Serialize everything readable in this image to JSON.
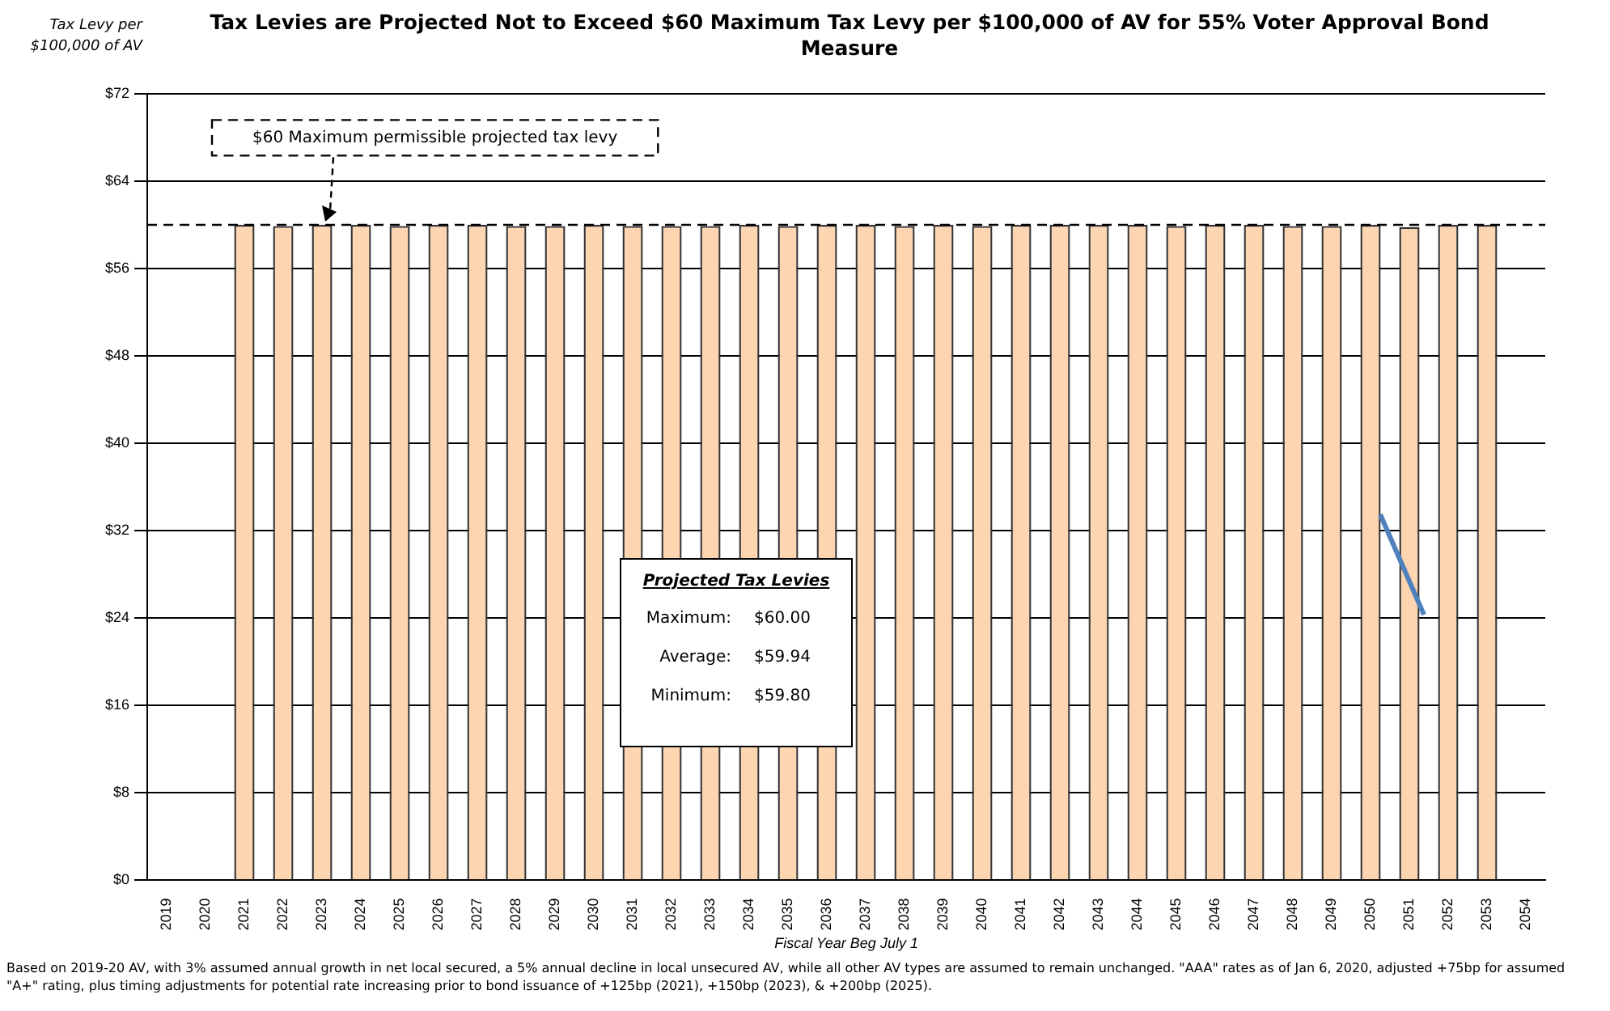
{
  "chart_data": {
    "type": "bar",
    "title": "Tax Levies are Projected Not to Exceed $60 Maximum Tax Levy per $100,000 of AV for 55% Voter Approval Bond Measure",
    "ylabel": "Tax Levy per $100,000 of AV",
    "xlabel": "Fiscal Year Beg July 1",
    "categories": [
      "2019",
      "2020",
      "2021",
      "2022",
      "2023",
      "2024",
      "2025",
      "2026",
      "2027",
      "2028",
      "2029",
      "2030",
      "2031",
      "2032",
      "2033",
      "2034",
      "2035",
      "2036",
      "2037",
      "2038",
      "2039",
      "2040",
      "2041",
      "2042",
      "2043",
      "2044",
      "2045",
      "2046",
      "2047",
      "2048",
      "2049",
      "2050",
      "2051",
      "2052",
      "2053",
      "2054"
    ],
    "values": [
      null,
      null,
      60,
      59.9,
      60,
      60,
      59.9,
      60,
      60,
      59.9,
      59.9,
      60,
      59.9,
      59.9,
      59.9,
      60,
      59.9,
      60,
      60,
      59.9,
      60,
      59.9,
      60,
      60,
      60,
      60,
      59.9,
      60,
      60,
      59.9,
      59.9,
      60,
      59.8,
      60,
      60,
      null
    ],
    "color": "#fdd5b1",
    "ylim": [
      0,
      72
    ],
    "yticks": [
      {
        "value": 0,
        "label": "$0"
      },
      {
        "value": 8,
        "label": "$8"
      },
      {
        "value": 16,
        "label": "$16"
      },
      {
        "value": 24,
        "label": "$24"
      },
      {
        "value": 32,
        "label": "$32"
      },
      {
        "value": 40,
        "label": "$40"
      },
      {
        "value": 48,
        "label": "$48"
      },
      {
        "value": 56,
        "label": "$56"
      },
      {
        "value": 64,
        "label": "$64"
      },
      {
        "value": 72,
        "label": "$72"
      }
    ],
    "grid": "y",
    "legend": false,
    "ref_lines": [
      {
        "axis": "y",
        "value": 60,
        "label": "$60 Maximum permissible projected tax levy",
        "line_style": "dashed",
        "color": "#000000"
      }
    ],
    "annotations": [
      "Projected Tax Levies",
      "Maximum:",
      "$60.00",
      "Average:",
      "$59.94",
      "Minimum:",
      "$59.80",
      "Based on 2019-20 AV, with 3% assumed annual growth in net local secured, a 5% annual decline in local unsecured AV, while all other AV types are assumed to remain unchanged. \"AAA\" rates as of Jan 6, 2020, adjusted +75bp for assumed \"A+\" rating, plus timing adjustments for potential rate increasing prior to bond issuance of +125bp (2021), +150bp (2023), & +200bp (2025)."
    ]
  }
}
